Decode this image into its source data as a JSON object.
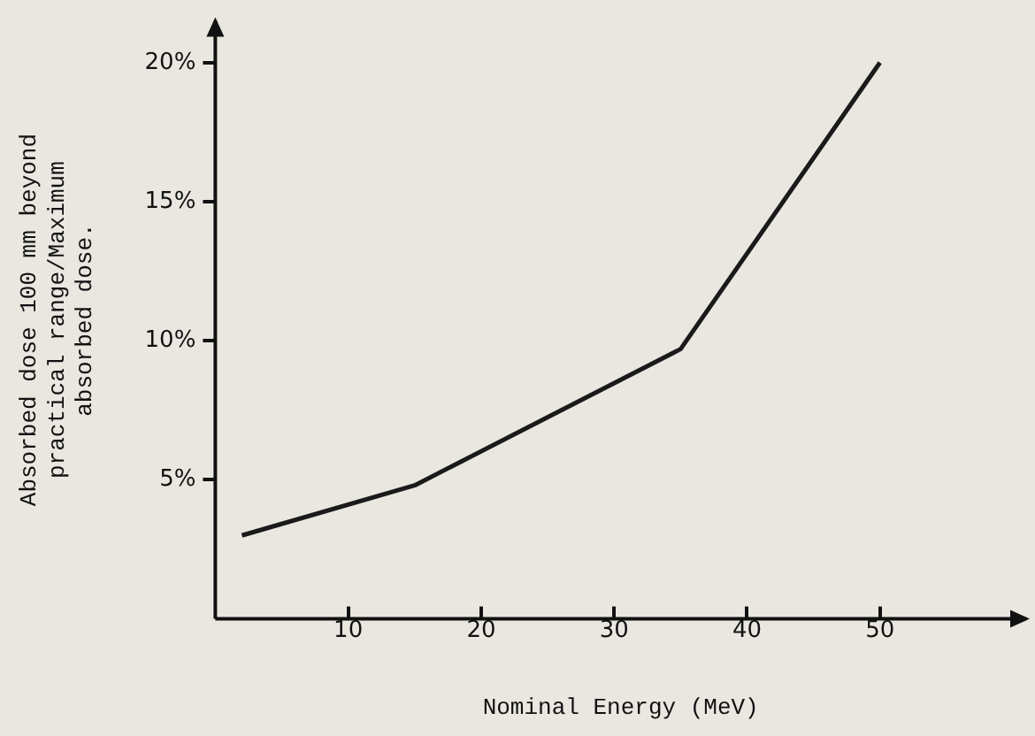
{
  "chart_data": {
    "type": "line",
    "xlabel": "Nominal Energy (MeV)",
    "ylabel": "Absorbed dose 100 mm beyond\npractical range/Maximum\nabsorbed dose.",
    "x": [
      2,
      15,
      35,
      50
    ],
    "series": [
      {
        "color": "#1a1a1a",
        "values": [
          3,
          4.8,
          9.7,
          20
        ]
      }
    ],
    "xlim": [
      0,
      61
    ],
    "xticks": [
      10,
      20,
      30,
      40,
      50
    ],
    "ylim": [
      0,
      21.5
    ],
    "yticks": [
      {
        "value": 5,
        "label": "5%"
      },
      {
        "value": 10,
        "label": "10%"
      },
      {
        "value": 15,
        "label": "15%"
      },
      {
        "value": 20,
        "label": "20%"
      }
    ],
    "grid": false,
    "legend": false,
    "marker": "none",
    "line_style": "solid"
  }
}
